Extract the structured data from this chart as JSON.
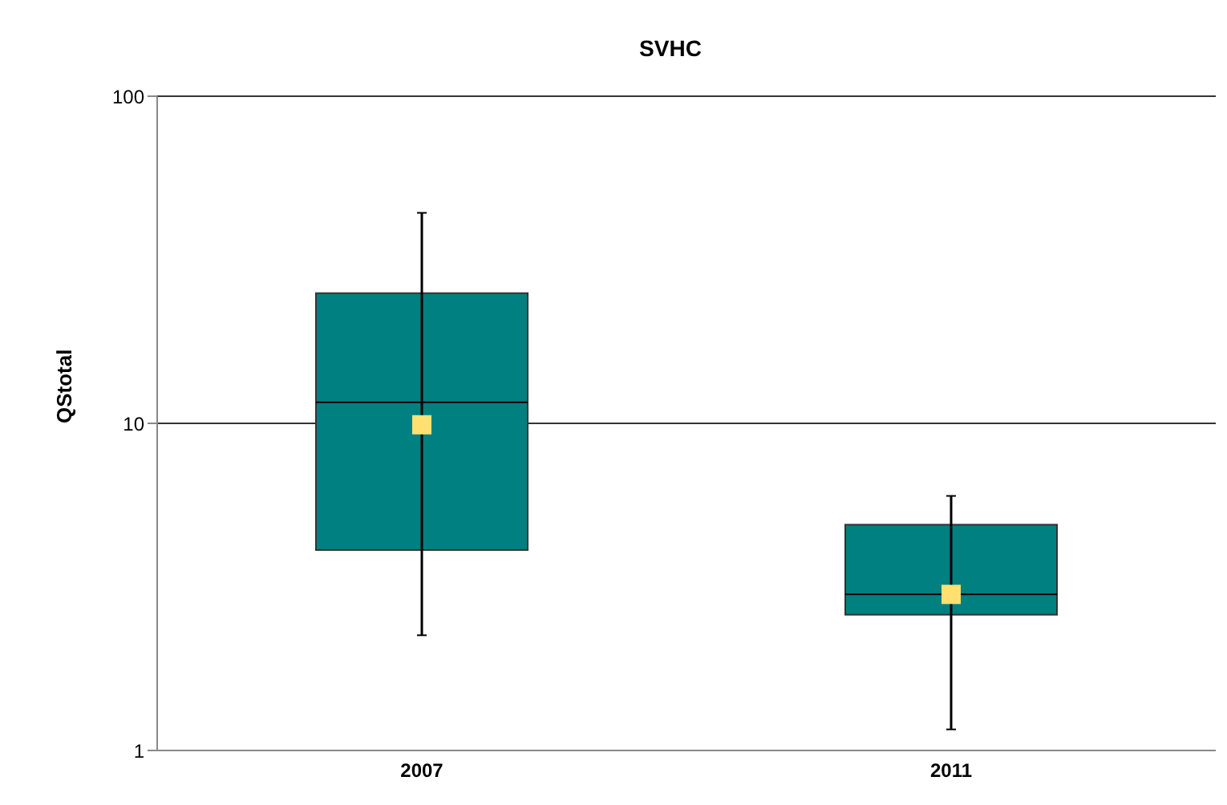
{
  "chart_data": {
    "type": "box",
    "title": "SVHC",
    "ylabel": "QStotal",
    "categories": [
      "2007",
      "2011"
    ],
    "color": "#008080",
    "boxes": [
      {
        "low": 2.25,
        "q1": 4.1,
        "median": 11.6,
        "q3": 25,
        "high": 44,
        "mean": 9.9
      },
      {
        "low": 1.16,
        "q1": 2.6,
        "median": 3,
        "q3": 4.9,
        "high": 6,
        "mean": 3
      }
    ],
    "log": true,
    "ylim": [
      1,
      100
    ],
    "yticks": [
      1,
      10,
      100
    ],
    "grid": "y"
  }
}
